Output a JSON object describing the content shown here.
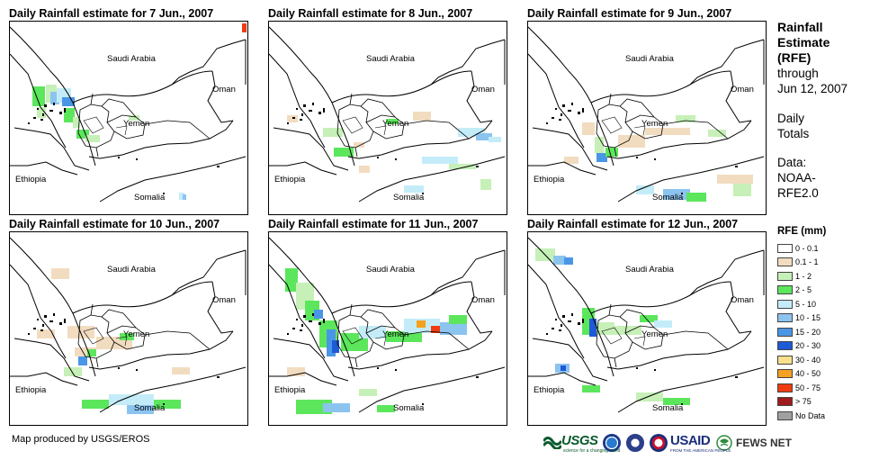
{
  "panels": [
    {
      "title": "Daily Rainfall estimate for 7 Jun., 2007"
    },
    {
      "title": "Daily Rainfall estimate for 8 Jun., 2007"
    },
    {
      "title": "Daily Rainfall estimate for 9 Jun., 2007"
    },
    {
      "title": "Daily Rainfall estimate for 10 Jun., 2007"
    },
    {
      "title": "Daily Rainfall estimate for 11 Jun., 2007"
    },
    {
      "title": "Daily Rainfall estimate for 12 Jun., 2007"
    }
  ],
  "map_labels": {
    "saudi": "Saudi Arabia",
    "oman": "Oman",
    "yemen": "Yemen",
    "ethiopia": "Ethiopia",
    "somalia": "Somalia"
  },
  "side": {
    "line1": "Rainfall",
    "line2": "Estimate",
    "line3": "(RFE)",
    "line4": "through",
    "line5": "Jun 12, 2007",
    "line6": "Daily",
    "line7": "Totals",
    "line8": "Data:",
    "line9": "NOAA-",
    "line10": "RFE2.0"
  },
  "legend": {
    "title": "RFE (mm)",
    "items": [
      {
        "label": "0 - 0.1",
        "color": "#ffffff"
      },
      {
        "label": "0.1 - 1",
        "color": "#f2dcc0"
      },
      {
        "label": "1 - 2",
        "color": "#c6f0b8"
      },
      {
        "label": "2 - 5",
        "color": "#5ce65c"
      },
      {
        "label": "5 - 10",
        "color": "#c4ecf8"
      },
      {
        "label": "10 - 15",
        "color": "#8cc4f0"
      },
      {
        "label": "15 - 20",
        "color": "#4a96e6"
      },
      {
        "label": "20 - 30",
        "color": "#1e5ad8"
      },
      {
        "label": "30 - 40",
        "color": "#f8e08c"
      },
      {
        "label": "40 - 50",
        "color": "#f4a020"
      },
      {
        "label": "50 - 75",
        "color": "#f03c10"
      },
      {
        "label": "> 75",
        "color": "#a01c1c"
      },
      {
        "label": "No Data",
        "color": "#a0a0a0"
      }
    ]
  },
  "credit": "Map produced by USGS/EROS",
  "logos": {
    "usgs": "USGS",
    "usgs_tag": "science for a changing world",
    "usaid": "USAID",
    "usaid_tag": "FROM THE AMERICAN PEOPLE",
    "fews": "FEWS NET"
  }
}
